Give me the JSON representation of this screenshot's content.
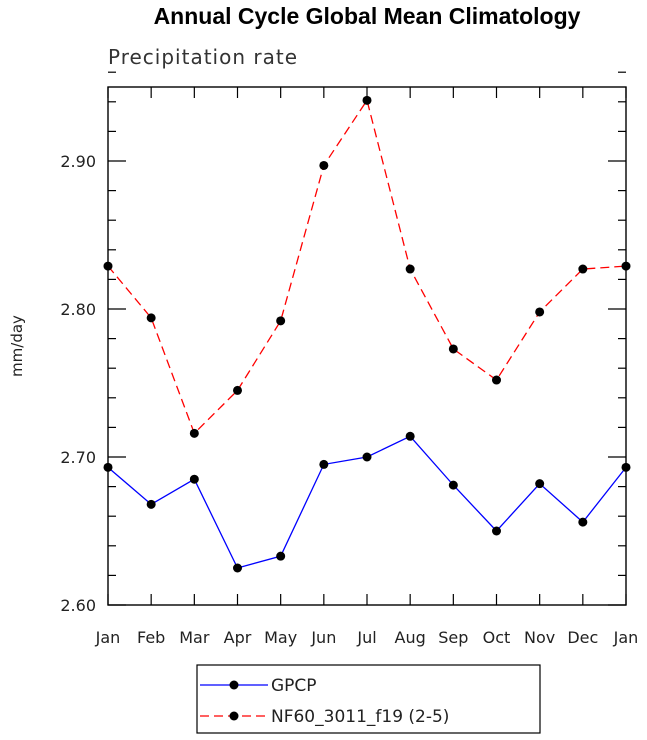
{
  "chart_data": {
    "type": "line",
    "title": "Annual Cycle Global Mean Climatology",
    "subtitle": "Precipitation rate",
    "xlabel": "",
    "ylabel": "mm/day",
    "categories": [
      "Jan",
      "Feb",
      "Mar",
      "Apr",
      "May",
      "Jun",
      "Jul",
      "Aug",
      "Sep",
      "Oct",
      "Nov",
      "Dec",
      "Jan"
    ],
    "ylim": [
      2.6,
      2.95
    ],
    "yticks": [
      2.6,
      2.7,
      2.8,
      2.9
    ],
    "ytick_labels": [
      "2.60",
      "2.70",
      "2.80",
      "2.90"
    ],
    "grid": false,
    "legend_position": "bottom-center",
    "series": [
      {
        "name": "GPCP",
        "color": "#0000ff",
        "line_style": "solid",
        "marker": "filled-circle",
        "values": [
          2.693,
          2.668,
          2.685,
          2.625,
          2.633,
          2.695,
          2.7,
          2.714,
          2.681,
          2.65,
          2.682,
          2.656,
          2.693
        ]
      },
      {
        "name": "NF60_3011_f19 (2-5)",
        "color": "#ff0000",
        "line_style": "dashed",
        "marker": "filled-circle",
        "values": [
          2.829,
          2.794,
          2.716,
          2.745,
          2.792,
          2.897,
          2.941,
          2.827,
          2.773,
          2.752,
          2.798,
          2.827,
          2.829
        ]
      }
    ]
  }
}
